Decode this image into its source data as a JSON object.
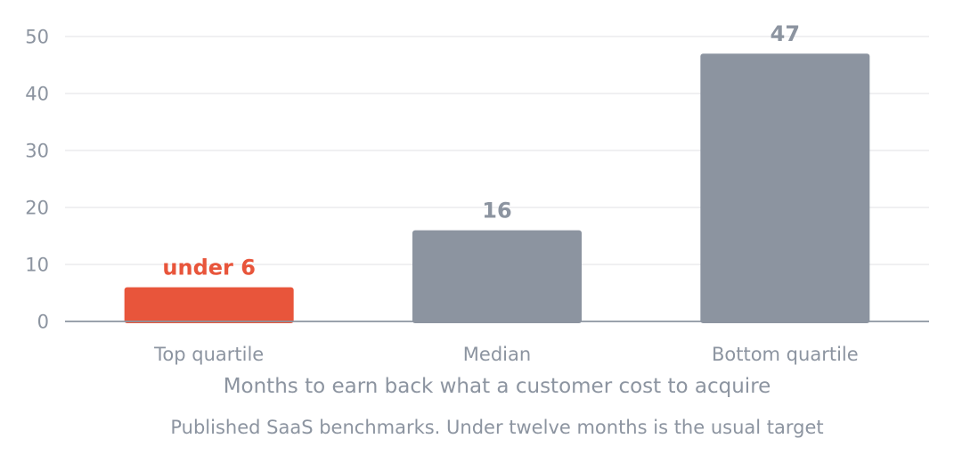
{
  "chart_data": {
    "type": "bar",
    "categories": [
      "Top quartile",
      "Median",
      "Bottom quartile"
    ],
    "values": [
      6,
      16,
      47
    ],
    "data_labels": [
      "under 6",
      "16",
      "47"
    ],
    "bar_colors": [
      "#e8553b",
      "#8c94a0",
      "#8c94a0"
    ],
    "label_colors": [
      "#e8553b",
      "#8c94a0",
      "#8c94a0"
    ],
    "xlabel": "Months to earn back what a customer cost to acquire",
    "ylabel": "",
    "title": "",
    "caption": "Published SaaS benchmarks. Under twelve months is the usual target",
    "ylim": [
      0,
      50
    ],
    "yticks": [
      "0",
      "10",
      "20",
      "30",
      "40",
      "50"
    ],
    "grid": true,
    "legend": false,
    "colors": {
      "text": "#8c94a0",
      "grid": "#e6e8eb",
      "axis": "#8c94a0"
    }
  }
}
